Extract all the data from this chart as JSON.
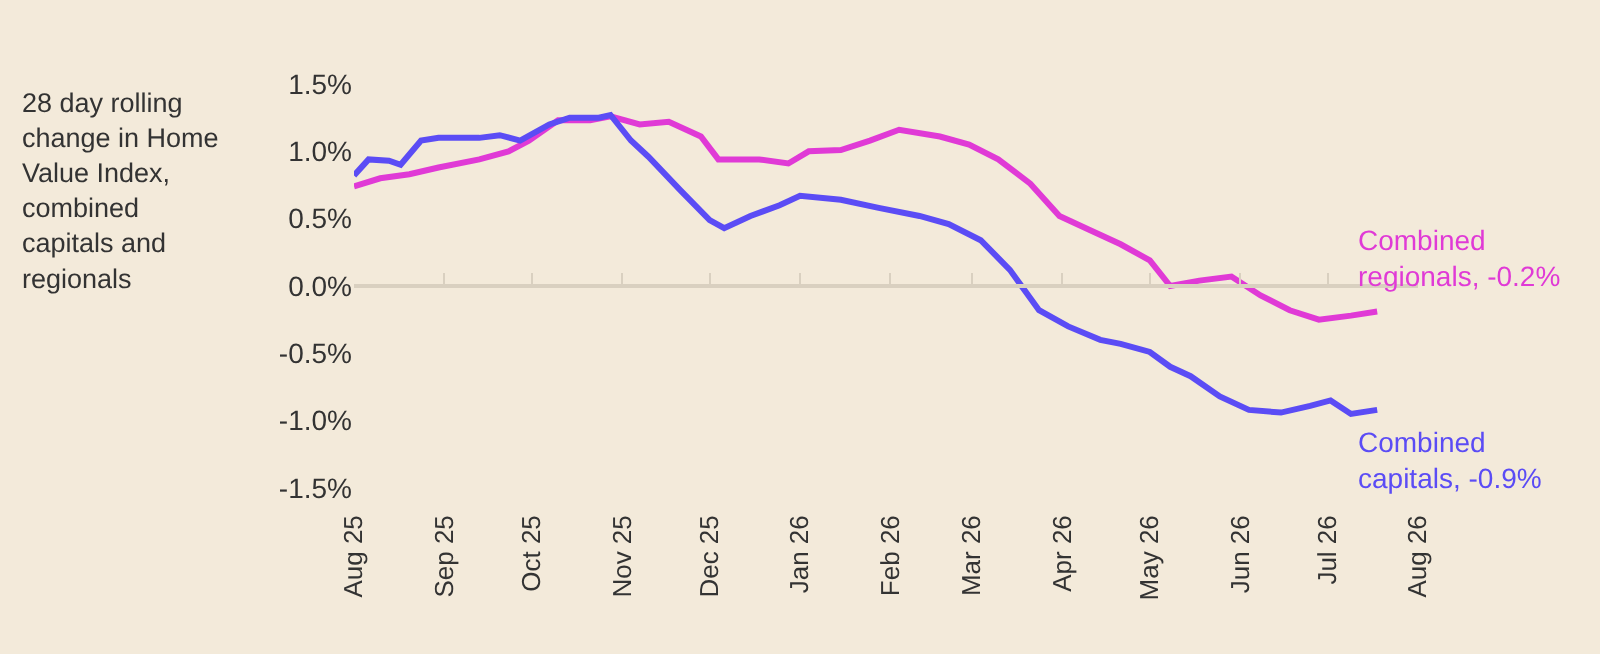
{
  "chart_data": {
    "type": "line",
    "ylabel": "28 day rolling change in Home Value Index, combined capitals and regionals",
    "xlim": [
      "2025-08-01",
      "2026-08-01"
    ],
    "xticks": [
      {
        "value": "2025-08-01",
        "label": "Aug 25"
      },
      {
        "value": "2025-09-01",
        "label": "Sep 25"
      },
      {
        "value": "2025-10-01",
        "label": "Oct 25"
      },
      {
        "value": "2025-11-01",
        "label": "Nov 25"
      },
      {
        "value": "2025-12-01",
        "label": "Dec 25"
      },
      {
        "value": "2026-01-01",
        "label": "Jan 26"
      },
      {
        "value": "2026-02-01",
        "label": "Feb 26"
      },
      {
        "value": "2026-03-01",
        "label": "Mar 26"
      },
      {
        "value": "2026-04-01",
        "label": "Apr 26"
      },
      {
        "value": "2026-05-01",
        "label": "May 26"
      },
      {
        "value": "2026-06-01",
        "label": "Jun 26"
      },
      {
        "value": "2026-07-01",
        "label": "Jul 26"
      },
      {
        "value": "2026-08-01",
        "label": "Aug 26"
      }
    ],
    "ylim": [
      -1.5,
      1.5
    ],
    "yticks": [
      {
        "value": -1.5,
        "label": "-1.5%"
      },
      {
        "value": -1.0,
        "label": "-1.0%"
      },
      {
        "value": -0.5,
        "label": "-0.5%"
      },
      {
        "value": 0.0,
        "label": "0.0%"
      },
      {
        "value": 0.5,
        "label": "0.5%"
      },
      {
        "value": 1.0,
        "label": "1.0%"
      },
      {
        "value": 1.5,
        "label": "1.5%"
      }
    ],
    "ref_lines": [
      {
        "axis": "y",
        "value": 0,
        "color": "#d9d0c0"
      }
    ],
    "grid": false,
    "legend": false,
    "marker": "none",
    "line_style": "solid",
    "series": [
      {
        "name": "Combined regionals, -0.2%",
        "color": "#e03ad6",
        "x": [
          "2025-08-01",
          "2025-08-10",
          "2025-08-20",
          "2025-08-30",
          "2025-09-13",
          "2025-09-23",
          "2025-09-30",
          "2025-10-10",
          "2025-10-21",
          "2025-10-28",
          "2025-11-07",
          "2025-11-17",
          "2025-11-28",
          "2025-12-04",
          "2025-12-18",
          "2025-12-28",
          "2026-01-04",
          "2026-01-15",
          "2026-01-25",
          "2026-02-04",
          "2026-02-18",
          "2026-02-28",
          "2026-03-10",
          "2026-03-21",
          "2026-03-31",
          "2026-04-10",
          "2026-04-21",
          "2026-05-01",
          "2026-05-08",
          "2026-05-18",
          "2026-05-29",
          "2026-06-08",
          "2026-06-18",
          "2026-06-28",
          "2026-07-09",
          "2026-07-18"
        ],
        "values": [
          0.74,
          0.8,
          0.83,
          0.88,
          0.94,
          1.0,
          1.08,
          1.23,
          1.23,
          1.26,
          1.2,
          1.22,
          1.11,
          0.94,
          0.94,
          0.91,
          1.0,
          1.01,
          1.08,
          1.16,
          1.11,
          1.05,
          0.94,
          0.76,
          0.52,
          0.42,
          0.31,
          0.19,
          0.0,
          0.04,
          0.07,
          -0.07,
          -0.18,
          -0.25,
          -0.22,
          -0.19
        ]
      },
      {
        "name": "Combined capitals, -0.9%",
        "color": "#5b4cf5",
        "x": [
          "2025-08-01",
          "2025-08-06",
          "2025-08-13",
          "2025-08-17",
          "2025-08-24",
          "2025-08-30",
          "2025-09-13",
          "2025-09-20",
          "2025-09-27",
          "2025-10-07",
          "2025-10-14",
          "2025-10-24",
          "2025-10-28",
          "2025-11-04",
          "2025-11-10",
          "2025-11-21",
          "2025-12-01",
          "2025-12-06",
          "2025-12-15",
          "2025-12-25",
          "2026-01-01",
          "2026-01-15",
          "2026-01-28",
          "2026-02-11",
          "2026-02-21",
          "2026-03-04",
          "2026-03-14",
          "2026-03-24",
          "2026-04-03",
          "2026-04-14",
          "2026-04-21",
          "2026-05-01",
          "2026-05-08",
          "2026-05-15",
          "2026-05-25",
          "2026-06-04",
          "2026-06-15",
          "2026-06-25",
          "2026-07-02",
          "2026-07-09",
          "2026-07-18"
        ],
        "values": [
          0.82,
          0.94,
          0.93,
          0.9,
          1.08,
          1.1,
          1.1,
          1.12,
          1.08,
          1.2,
          1.25,
          1.25,
          1.27,
          1.08,
          0.96,
          0.71,
          0.49,
          0.43,
          0.52,
          0.6,
          0.67,
          0.64,
          0.58,
          0.52,
          0.46,
          0.34,
          0.12,
          -0.18,
          -0.3,
          -0.4,
          -0.43,
          -0.49,
          -0.6,
          -0.67,
          -0.82,
          -0.92,
          -0.94,
          -0.89,
          -0.85,
          -0.95,
          -0.92
        ]
      }
    ]
  }
}
